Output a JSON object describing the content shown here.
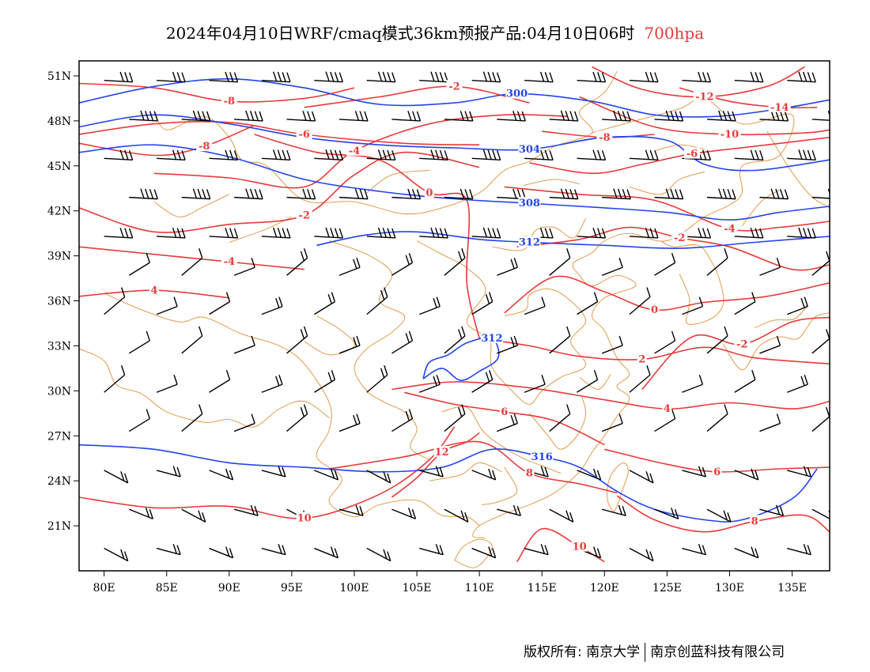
{
  "title": {
    "main": "2024年04月10日WRF/cmaq模式36km预报产品:04月10日06时",
    "level": "700hpa"
  },
  "colors": {
    "height_contour": "#2244ee",
    "temperature_contour": "#e83a3a",
    "boundary": "#e0903a",
    "wind_barb": "#000000",
    "frame": "#000000"
  },
  "map": {
    "lon_range": [
      78,
      138
    ],
    "lat_range": [
      18,
      52
    ],
    "lat_ticks": [
      "51N",
      "48N",
      "45N",
      "42N",
      "39N",
      "36N",
      "33N",
      "30N",
      "27N",
      "24N",
      "21N"
    ],
    "lat_tick_values": [
      51,
      48,
      45,
      42,
      39,
      36,
      33,
      30,
      27,
      24,
      21
    ],
    "lon_ticks": [
      "80E",
      "85E",
      "90E",
      "95E",
      "100E",
      "105E",
      "110E",
      "115E",
      "120E",
      "125E",
      "130E",
      "135E"
    ],
    "lon_tick_values": [
      80,
      85,
      90,
      95,
      100,
      105,
      110,
      115,
      120,
      125,
      130,
      135
    ]
  },
  "height_contours": [
    {
      "label": "300",
      "points": [
        [
          78,
          49.2
        ],
        [
          84,
          50.3
        ],
        [
          90,
          50.8
        ],
        [
          96,
          50.2
        ],
        [
          102,
          49.1
        ],
        [
          108,
          49.2
        ],
        [
          113,
          49.8
        ],
        [
          119,
          49.3
        ],
        [
          124,
          48.4
        ],
        [
          129,
          48.3
        ],
        [
          134,
          48.8
        ],
        [
          138,
          49.4
        ]
      ]
    },
    {
      "label": "304",
      "points": [
        [
          78,
          47.6
        ],
        [
          84,
          48.4
        ],
        [
          90,
          47.8
        ],
        [
          96,
          46.9
        ],
        [
          102,
          46.4
        ],
        [
          108,
          46.2
        ],
        [
          114,
          46.1
        ],
        [
          120,
          46.9
        ],
        [
          125,
          46.7
        ],
        [
          128,
          45.1
        ],
        [
          132,
          44.7
        ],
        [
          138,
          45.4
        ]
      ]
    },
    {
      "label": "308",
      "points": [
        [
          78,
          45.9
        ],
        [
          84,
          46.4
        ],
        [
          90,
          45.6
        ],
        [
          96,
          44.1
        ],
        [
          102,
          43.3
        ],
        [
          108,
          42.8
        ],
        [
          114,
          42.5
        ],
        [
          120,
          42.2
        ],
        [
          125,
          41.9
        ],
        [
          130,
          41.4
        ],
        [
          134,
          41.9
        ],
        [
          138,
          42.3
        ]
      ]
    },
    {
      "label": "312",
      "points": [
        [
          97,
          39.7
        ],
        [
          101,
          40.4
        ],
        [
          105,
          40.6
        ],
        [
          110,
          40.1
        ],
        [
          114,
          39.9
        ],
        [
          120,
          39.7
        ],
        [
          126,
          39.5
        ],
        [
          132,
          39.9
        ],
        [
          138,
          40.3
        ]
      ]
    },
    {
      "label": "316",
      "points": [
        [
          78,
          26.4
        ],
        [
          84,
          26.1
        ],
        [
          90,
          25.2
        ],
        [
          96,
          24.9
        ],
        [
          102,
          24.6
        ],
        [
          107,
          24.9
        ],
        [
          111,
          26.1
        ],
        [
          115,
          25.6
        ],
        [
          118,
          24.9
        ],
        [
          121,
          23.3
        ],
        [
          124,
          22.1
        ],
        [
          128,
          21.4
        ],
        [
          131,
          21.4
        ],
        [
          135,
          22.8
        ],
        [
          137,
          24.8
        ]
      ]
    },
    {
      "label": "312",
      "points": [
        [
          105.5,
          30.8
        ],
        [
          107,
          31.5
        ],
        [
          108.5,
          30.7
        ],
        [
          110,
          31.3
        ],
        [
          111.5,
          32.2
        ],
        [
          111,
          33.5
        ],
        [
          109,
          33.2
        ],
        [
          107.5,
          32.4
        ],
        [
          106,
          31.9
        ],
        [
          105.5,
          30.8
        ]
      ]
    }
  ],
  "temperature_contours": [
    {
      "label": "-12",
      "points": [
        [
          119,
          51.6
        ],
        [
          123,
          50.1
        ],
        [
          128,
          49.6
        ],
        [
          133,
          50.3
        ],
        [
          136,
          51.6
        ]
      ]
    },
    {
      "label": "-14",
      "points": [
        [
          126,
          50.2
        ],
        [
          130,
          49.3
        ],
        [
          134,
          48.9
        ],
        [
          137,
          48.9
        ]
      ]
    },
    {
      "label": "-10",
      "points": [
        [
          118,
          49.6
        ],
        [
          124,
          47.6
        ],
        [
          130,
          47.1
        ],
        [
          136,
          47.2
        ],
        [
          138,
          47.4
        ]
      ]
    },
    {
      "label": "-8",
      "points": [
        [
          78,
          50.5
        ],
        [
          84,
          50.2
        ],
        [
          90,
          49.3
        ],
        [
          96,
          49.5
        ],
        [
          100,
          50.2
        ]
      ]
    },
    {
      "label": "-8",
      "points": [
        [
          78,
          46.5
        ],
        [
          84,
          45.7
        ],
        [
          88,
          46.3
        ],
        [
          92,
          47.7
        ]
      ]
    },
    {
      "label": "-8",
      "points": [
        [
          115,
          47.3
        ],
        [
          120,
          46.9
        ],
        [
          124,
          47.1
        ]
      ]
    },
    {
      "label": "-6",
      "points": [
        [
          78,
          47.1
        ],
        [
          84,
          47.8
        ],
        [
          90,
          47.9
        ],
        [
          96,
          47.1
        ],
        [
          104,
          46.5
        ],
        [
          110,
          46.4
        ]
      ]
    },
    {
      "label": "-6",
      "points": [
        [
          114,
          45.2
        ],
        [
          119,
          44.5
        ],
        [
          123,
          45.1
        ],
        [
          127,
          45.8
        ],
        [
          132,
          46.3
        ],
        [
          138,
          46.9
        ]
      ]
    },
    {
      "label": "-4",
      "points": [
        [
          84,
          44.5
        ],
        [
          90,
          44.2
        ],
        [
          96,
          43.6
        ],
        [
          100,
          46.0
        ],
        [
          106,
          47.8
        ],
        [
          112,
          48.4
        ],
        [
          117,
          48.3
        ]
      ]
    },
    {
      "label": "-4",
      "points": [
        [
          112,
          43.6
        ],
        [
          118,
          43.1
        ],
        [
          124,
          42.7
        ],
        [
          130,
          40.8
        ],
        [
          134,
          40.9
        ],
        [
          138,
          41.3
        ]
      ]
    },
    {
      "label": "-2",
      "points": [
        [
          78,
          42.2
        ],
        [
          84,
          40.6
        ],
        [
          90,
          41.1
        ],
        [
          96,
          41.7
        ],
        [
          100,
          44.4
        ],
        [
          104,
          45.9
        ],
        [
          110,
          44.9
        ]
      ]
    },
    {
      "label": "-2",
      "points": [
        [
          96,
          48.9
        ],
        [
          102,
          49.6
        ],
        [
          108,
          50.3
        ],
        [
          114,
          49.2
        ]
      ]
    },
    {
      "label": "-2",
      "points": [
        [
          113,
          39.6
        ],
        [
          118,
          40.1
        ],
        [
          122,
          40.9
        ],
        [
          126,
          40.2
        ],
        [
          130,
          39.6
        ],
        [
          135,
          38.1
        ],
        [
          138,
          38.4
        ]
      ]
    },
    {
      "label": "-2",
      "points": [
        [
          123,
          30.1
        ],
        [
          127,
          33.6
        ],
        [
          131,
          33.1
        ],
        [
          135,
          34.6
        ],
        [
          138,
          34.9
        ]
      ]
    },
    {
      "label": "0",
      "points": [
        [
          92,
          47.1
        ],
        [
          97,
          45.9
        ],
        [
          102,
          45.4
        ],
        [
          106,
          43.2
        ],
        [
          109,
          42.7
        ],
        [
          109,
          37.2
        ],
        [
          110,
          33.5
        ]
      ]
    },
    {
      "label": "0",
      "points": [
        [
          112,
          35.2
        ],
        [
          116,
          37.6
        ],
        [
          120,
          36.6
        ],
        [
          124,
          35.4
        ],
        [
          128,
          35.9
        ],
        [
          133,
          36.3
        ],
        [
          138,
          37.2
        ]
      ]
    },
    {
      "label": "-4",
      "points": [
        [
          78,
          39.6
        ],
        [
          84,
          39.1
        ],
        [
          90,
          38.6
        ],
        [
          96,
          38.1
        ]
      ]
    },
    {
      "label": "2",
      "points": [
        [
          110,
          33.5
        ],
        [
          114,
          33.0
        ],
        [
          118,
          32.3
        ],
        [
          123,
          32.1
        ],
        [
          128,
          32.9
        ],
        [
          132,
          32.2
        ],
        [
          138,
          31.8
        ]
      ]
    },
    {
      "label": "4",
      "points": [
        [
          78,
          36.3
        ],
        [
          84,
          36.7
        ],
        [
          90,
          36.2
        ]
      ]
    },
    {
      "label": "4",
      "points": [
        [
          103,
          30.1
        ],
        [
          108,
          30.6
        ],
        [
          114,
          30.2
        ],
        [
          120,
          29.4
        ],
        [
          125,
          28.8
        ],
        [
          130,
          29.2
        ],
        [
          135,
          28.8
        ],
        [
          138,
          29.3
        ]
      ]
    },
    {
      "label": "6",
      "points": [
        [
          104,
          29.9
        ],
        [
          108,
          29.1
        ],
        [
          112,
          28.6
        ],
        [
          116,
          28.0
        ],
        [
          120,
          26.4
        ]
      ]
    },
    {
      "label": "6",
      "points": [
        [
          120,
          26.1
        ],
        [
          125,
          25.1
        ],
        [
          129,
          24.6
        ],
        [
          134,
          24.8
        ],
        [
          138,
          24.9
        ]
      ]
    },
    {
      "label": "8",
      "points": [
        [
          98,
          24.8
        ],
        [
          104,
          25.6
        ],
        [
          110,
          26.6
        ],
        [
          114,
          24.5
        ],
        [
          118,
          23.8
        ],
        [
          121,
          23.2
        ]
      ]
    },
    {
      "label": "8",
      "points": [
        [
          121,
          23.0
        ],
        [
          124,
          21.4
        ],
        [
          128,
          20.6
        ],
        [
          132,
          21.3
        ],
        [
          136,
          21.7
        ],
        [
          138,
          20.6
        ]
      ]
    },
    {
      "label": "10",
      "points": [
        [
          78,
          22.9
        ],
        [
          84,
          22.2
        ],
        [
          90,
          22.3
        ],
        [
          96,
          21.5
        ],
        [
          102,
          23.1
        ],
        [
          106,
          25.4
        ],
        [
          108,
          27.6
        ]
      ]
    },
    {
      "label": "10",
      "points": [
        [
          113,
          18.6
        ],
        [
          115,
          20.8
        ],
        [
          118,
          19.6
        ],
        [
          120,
          18.6
        ]
      ]
    },
    {
      "label": "12",
      "points": [
        [
          103,
          22.9
        ],
        [
          105,
          24.2
        ],
        [
          107,
          25.9
        ],
        [
          109,
          26.6
        ],
        [
          110,
          27.2
        ]
      ]
    }
  ],
  "footer": {
    "left": "版权所有: 南京大学",
    "right": "南京创蓝科技有限公司"
  }
}
